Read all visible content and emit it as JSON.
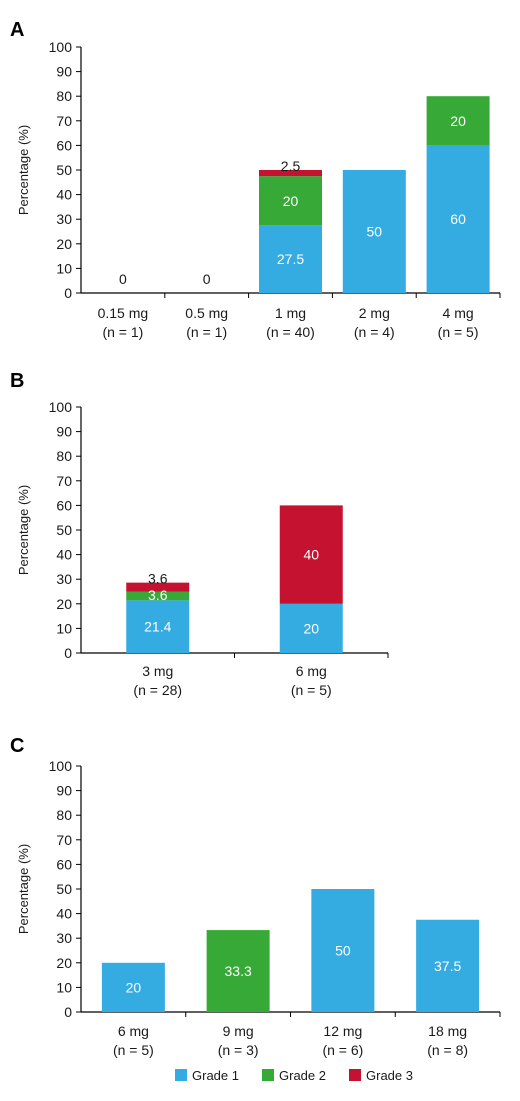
{
  "colors": {
    "grade1": "#35ace1",
    "grade2": "#37a937",
    "grade3": "#c41230",
    "axis": "#000000"
  },
  "legend": [
    {
      "name": "Grade 1",
      "color": "#35ace1"
    },
    {
      "name": "Grade 2",
      "color": "#37a937"
    },
    {
      "name": "Grade 3",
      "color": "#c41230"
    }
  ],
  "chart_data": [
    {
      "type": "bar",
      "stacked": true,
      "panel": "A",
      "ylabel": "Percentage (%)",
      "ylim": [
        0,
        100
      ],
      "yticks": [
        0,
        10,
        20,
        30,
        40,
        50,
        60,
        70,
        80,
        90,
        100
      ],
      "categories": [
        {
          "dose": "0.15 mg",
          "n": "(n = 1)"
        },
        {
          "dose": "0.5 mg",
          "n": "(n = 1)"
        },
        {
          "dose": "1 mg",
          "n": "(n = 40)"
        },
        {
          "dose": "2 mg",
          "n": "(n = 4)"
        },
        {
          "dose": "4 mg",
          "n": "(n = 5)"
        }
      ],
      "series": [
        {
          "name": "Grade 1",
          "values": [
            0,
            0,
            27.5,
            50,
            60
          ],
          "labels": [
            "0",
            "0",
            "27.5",
            "50",
            "60"
          ]
        },
        {
          "name": "Grade 2",
          "values": [
            0,
            0,
            20,
            0,
            20
          ],
          "labels": [
            "",
            "",
            "20",
            "",
            "20"
          ]
        },
        {
          "name": "Grade 3",
          "values": [
            0,
            0,
            2.5,
            0,
            0
          ],
          "labels": [
            "",
            "",
            "2.5",
            "",
            ""
          ]
        }
      ]
    },
    {
      "type": "bar",
      "stacked": true,
      "panel": "B",
      "ylabel": "Percentage (%)",
      "ylim": [
        0,
        100
      ],
      "yticks": [
        0,
        10,
        20,
        30,
        40,
        50,
        60,
        70,
        80,
        90,
        100
      ],
      "categories": [
        {
          "dose": "3 mg",
          "n": "(n = 28)"
        },
        {
          "dose": "6 mg",
          "n": "(n = 5)"
        }
      ],
      "series": [
        {
          "name": "Grade 1",
          "values": [
            21.4,
            20
          ],
          "labels": [
            "21.4",
            "20"
          ]
        },
        {
          "name": "Grade 2",
          "values": [
            3.6,
            0
          ],
          "labels": [
            "3.6",
            ""
          ]
        },
        {
          "name": "Grade 3",
          "values": [
            3.6,
            40
          ],
          "labels": [
            "3.6",
            "40"
          ]
        }
      ]
    },
    {
      "type": "bar",
      "stacked": true,
      "panel": "C",
      "ylabel": "Percentage (%)",
      "ylim": [
        0,
        100
      ],
      "yticks": [
        0,
        10,
        20,
        30,
        40,
        50,
        60,
        70,
        80,
        90,
        100
      ],
      "categories": [
        {
          "dose": "6 mg",
          "n": "(n = 5)"
        },
        {
          "dose": "9 mg",
          "n": "(n = 3)"
        },
        {
          "dose": "12 mg",
          "n": "(n = 6)"
        },
        {
          "dose": "18 mg",
          "n": "(n = 8)"
        }
      ],
      "series": [
        {
          "name": "Grade 1",
          "values": [
            20,
            0,
            50,
            37.5
          ],
          "labels": [
            "20",
            "",
            "50",
            "37.5"
          ]
        },
        {
          "name": "Grade 2",
          "values": [
            0,
            33.3,
            0,
            0
          ],
          "labels": [
            "",
            "33.3",
            "",
            ""
          ]
        },
        {
          "name": "Grade 3",
          "values": [
            0,
            0,
            0,
            0
          ],
          "labels": [
            "",
            "",
            "",
            ""
          ]
        }
      ]
    }
  ]
}
